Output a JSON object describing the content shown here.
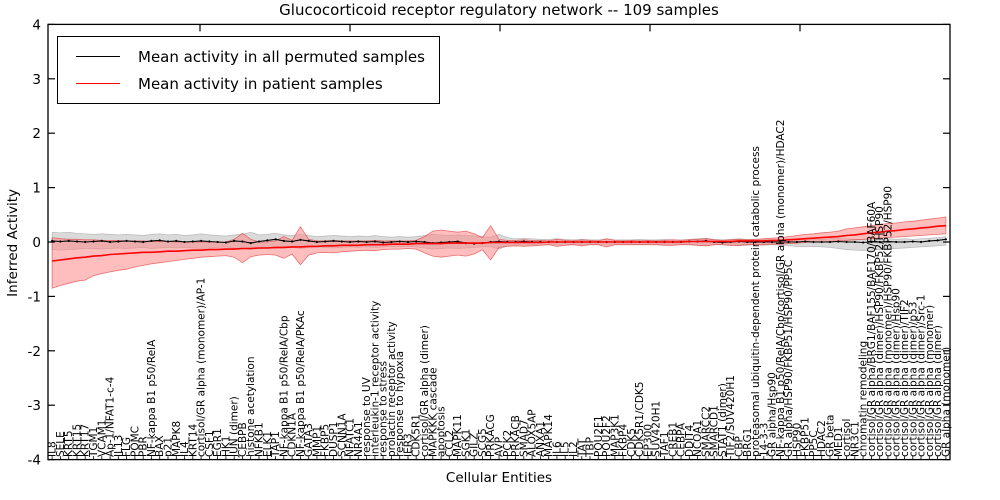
{
  "title": "Glucocorticoid receptor regulatory network -- 109 samples",
  "axes": {
    "ylabel": "Inferred Activity",
    "xlabel": "Cellular Entities",
    "yticks": [
      4,
      3,
      2,
      1,
      0,
      -1,
      -2,
      -3,
      -4
    ],
    "ylim": [
      -4,
      4
    ]
  },
  "legend": {
    "entries": [
      {
        "label": "Mean activity in all permuted samples",
        "color": "#000000"
      },
      {
        "label": "Mean activity in patient samples",
        "color": "#ff0000"
      }
    ]
  },
  "colors": {
    "permuted_line": "#000000",
    "permuted_band": "#bcbcbc",
    "patient_line": "#ff0000",
    "patient_band": "#ff8888",
    "spine": "#000000"
  },
  "chart_data": {
    "type": "line",
    "title": "Glucocorticoid receptor regulatory network -- 109 samples",
    "xlabel": "Cellular Entities",
    "ylabel": "Inferred Activity",
    "ylim": [
      -4,
      4
    ],
    "grid": false,
    "legend_position": "upper left",
    "categories": [
      "IL8",
      "SELE",
      "KRT5",
      "KRT15",
      "KRT17",
      "TGM1",
      "VCAM1",
      "Ap-1/NFAT1-c-4",
      "IL13",
      "FLG",
      "POMC",
      "PBR",
      "NF-kappa B1 p50/RelA",
      "BAX",
      "p21",
      "MAPK8",
      "IL4",
      "KRT14",
      "cortisol/GR alpha (monomer)/AP-1",
      "CSF1",
      "EGR1",
      "HK1",
      "JUN (dimer)",
      "CEBPB",
      "histone acetylation",
      "NFKB1",
      "ELK1",
      "TAP1",
      "NF-kappa B1 p50/RelA/Cbp",
      "CDKN1A",
      "NF-kappa B1 p50/RelA/PKAc",
      "GATA3",
      "MMP1",
      "FKBP5",
      "DUSP1",
      "SCNN1A",
      "NFATC1",
      "NR4A1",
      "response to UV",
      "interleukin-1 receptor activity",
      "response to stress",
      "prolactin receptor activity",
      "response to hypoxia",
      "IER3",
      "CDK5R1",
      "cortisol/GR alpha (dimer)",
      "MAPKKK cascade",
      "apoptosis",
      "CCL2",
      "MAPK11",
      "SGK1",
      "GILZ",
      "SCG5",
      "PRKACG",
      "AVP",
      "PCK2",
      "PRKACB",
      "SMAD7",
      "ALOX5AP",
      "ANXA1",
      "MAPK14",
      "IL6",
      "IL5",
      "IL2",
      "TAT",
      "TBP",
      "POU2F1",
      "POU2F2",
      "MAP3K1",
      "FKBP4",
      "CDK5",
      "CDK5R1/CDK5",
      "EP300",
      "SUV420H1",
      "TAF1",
      "CREB1",
      "CEBPA",
      "DDIT4",
      "NCOA1",
      "SMARCC2",
      "SMARCD1",
      "STAT1 (dimer)",
      "TIF2/SUV420H1",
      "CBP",
      "BRG1",
      "proteasomal ubiquitin-dependent protein catabolic process",
      "14-3-3",
      "GR alpha/Hsp90",
      "NF-kappa B1 p50/RelA/Cbp/cortisol/GR alpha (monomer)/HDAC2",
      "GR alpha/HSP90/FKBP51/HSP90/PP5C",
      "HSP90",
      "FKBP51",
      "PP5C",
      "HDAC2",
      "GR beta",
      "MED1",
      "cortisol",
      "NR3C1",
      "chromatin remodeling",
      "cortisol/GR alpha/BRG1/BAF155/BAF170/BAF60A",
      "cortisol/GR alpha (dimer)/HSP90/FKBP52/HSP90",
      "cortisol/GR alpha (monomer)/HSP90/FKBP52/HSP90",
      "cortisol/GR alpha (dimer)/Hsp90",
      "cortisol/GR alpha (dimer)/TIF2",
      "cortisol/GR alpha (dimer)/p53",
      "cortisol/GR alpha (dimer)/Src-1",
      "cortisol/GR alpha (monomer)",
      "cortisol/GR alpha (dimer)",
      "GR alpha (monomer)"
    ],
    "series": [
      {
        "name": "Mean activity in all permuted samples",
        "color": "#000000",
        "values": [
          0.02,
          0.01,
          0.02,
          0.01,
          0.0,
          0.01,
          0.02,
          0.0,
          0.01,
          0.02,
          0.01,
          0.0,
          0.02,
          0.03,
          0.01,
          0.02,
          0.0,
          0.01,
          0.02,
          0.01,
          0.0,
          -0.01,
          0.02,
          0.01,
          -0.02,
          0.01,
          0.03,
          0.05,
          0.02,
          0.01,
          0.04,
          0.02,
          0.0,
          0.01,
          0.02,
          0.01,
          0.0,
          0.01,
          0.0,
          0.01,
          -0.01,
          0.0,
          0.01,
          0.0,
          0.01,
          0.0,
          -0.02,
          -0.01,
          0.0,
          0.01,
          -0.02,
          -0.03,
          -0.02,
          0.0,
          0.01,
          0.0,
          0.0,
          0.01,
          0.0,
          0.0,
          0.0,
          0.0,
          0.0,
          0.0,
          0.0,
          0.0,
          0.0,
          0.0,
          0.0,
          0.0,
          0.0,
          0.0,
          0.0,
          0.0,
          0.0,
          0.0,
          0.0,
          0.01,
          0.01,
          0.02,
          0.0,
          -0.01,
          0.0,
          0.01,
          0.0,
          0.0,
          0.0,
          0.0,
          0.0,
          0.0,
          0.0,
          0.01,
          0.0,
          0.0,
          0.0,
          0.01,
          0.0,
          0.0,
          -0.01,
          0.0,
          0.0,
          0.01,
          0.0,
          0.0,
          0.01,
          0.0,
          0.02,
          0.03,
          0.05
        ],
        "band_upper": [
          0.18,
          0.17,
          0.18,
          0.16,
          0.15,
          0.14,
          0.15,
          0.14,
          0.13,
          0.14,
          0.13,
          0.12,
          0.14,
          0.15,
          0.13,
          0.14,
          0.12,
          0.13,
          0.15,
          0.13,
          0.12,
          0.11,
          0.13,
          0.14,
          0.18,
          0.13,
          0.14,
          0.16,
          0.13,
          0.12,
          0.14,
          0.12,
          0.1,
          0.11,
          0.12,
          0.11,
          0.1,
          0.11,
          0.1,
          0.12,
          0.1,
          0.09,
          0.1,
          0.09,
          0.1,
          0.12,
          0.14,
          0.13,
          0.12,
          0.13,
          0.12,
          0.11,
          0.1,
          0.09,
          0.14,
          0.08,
          0.06,
          0.07,
          0.06,
          0.05,
          0.05,
          0.06,
          0.05,
          0.04,
          0.05,
          0.04,
          0.04,
          0.05,
          0.04,
          0.04,
          0.04,
          0.05,
          0.04,
          0.04,
          0.05,
          0.04,
          0.04,
          0.05,
          0.06,
          0.07,
          0.05,
          0.04,
          0.05,
          0.06,
          0.05,
          0.04,
          0.05,
          0.04,
          0.05,
          0.06,
          0.05,
          0.06,
          0.05,
          0.05,
          0.06,
          0.07,
          0.06,
          0.05,
          0.05,
          0.06,
          0.05,
          0.06,
          0.05,
          0.06,
          0.05,
          0.06,
          0.07,
          0.08,
          0.1
        ],
        "band_lower": [
          -0.14,
          -0.15,
          -0.14,
          -0.13,
          -0.12,
          -0.12,
          -0.13,
          -0.12,
          -0.11,
          -0.12,
          -0.11,
          -0.1,
          -0.12,
          -0.11,
          -0.1,
          -0.11,
          -0.1,
          -0.11,
          -0.12,
          -0.11,
          -0.1,
          -0.09,
          -0.11,
          -0.12,
          -0.14,
          -0.11,
          -0.1,
          -0.12,
          -0.11,
          -0.1,
          -0.12,
          -0.1,
          -0.09,
          -0.1,
          -0.11,
          -0.1,
          -0.09,
          -0.1,
          -0.09,
          -0.1,
          -0.09,
          -0.08,
          -0.09,
          -0.08,
          -0.09,
          -0.11,
          -0.13,
          -0.12,
          -0.11,
          -0.12,
          -0.11,
          -0.1,
          -0.09,
          -0.08,
          -0.13,
          -0.07,
          -0.05,
          -0.06,
          -0.05,
          -0.04,
          -0.04,
          -0.05,
          -0.04,
          -0.04,
          -0.05,
          -0.04,
          -0.04,
          -0.05,
          -0.04,
          -0.04,
          -0.04,
          -0.05,
          -0.04,
          -0.04,
          -0.05,
          -0.04,
          -0.04,
          -0.05,
          -0.06,
          -0.07,
          -0.05,
          -0.05,
          -0.06,
          -0.07,
          -0.06,
          -0.05,
          -0.06,
          -0.05,
          -0.06,
          -0.07,
          -0.08,
          -0.09,
          -0.08,
          -0.09,
          -0.1,
          -0.12,
          -0.14,
          -0.15,
          -0.16,
          -0.15,
          -0.14,
          -0.13,
          -0.12,
          -0.11,
          -0.1,
          -0.09,
          -0.08,
          -0.07,
          -0.06
        ]
      },
      {
        "name": "Mean activity in patient samples",
        "color": "#ff0000",
        "values": [
          -0.35,
          -0.33,
          -0.31,
          -0.29,
          -0.28,
          -0.26,
          -0.25,
          -0.23,
          -0.22,
          -0.21,
          -0.2,
          -0.19,
          -0.19,
          -0.18,
          -0.17,
          -0.17,
          -0.16,
          -0.15,
          -0.15,
          -0.14,
          -0.14,
          -0.13,
          -0.13,
          -0.12,
          -0.12,
          -0.11,
          -0.11,
          -0.1,
          -0.1,
          -0.09,
          -0.09,
          -0.08,
          -0.08,
          -0.07,
          -0.07,
          -0.06,
          -0.06,
          -0.06,
          -0.05,
          -0.05,
          -0.05,
          -0.04,
          -0.04,
          -0.04,
          -0.03,
          -0.03,
          -0.03,
          -0.03,
          -0.02,
          -0.02,
          -0.02,
          -0.02,
          -0.02,
          -0.01,
          -0.01,
          -0.01,
          -0.01,
          -0.01,
          -0.01,
          -0.01,
          0.0,
          0.0,
          0.0,
          0.0,
          0.0,
          0.0,
          0.0,
          0.0,
          0.0,
          0.0,
          0.0,
          0.0,
          0.0,
          0.0,
          0.0,
          0.0,
          0.0,
          0.01,
          0.01,
          0.01,
          0.01,
          0.01,
          0.01,
          0.02,
          0.02,
          0.02,
          0.02,
          0.03,
          0.03,
          0.04,
          0.05,
          0.06,
          0.07,
          0.08,
          0.09,
          0.1,
          0.12,
          0.13,
          0.15,
          0.17,
          0.18,
          0.2,
          0.21,
          0.23,
          0.24,
          0.26,
          0.27,
          0.29,
          0.3
        ],
        "band_upper": [
          0.08,
          0.06,
          0.05,
          0.05,
          0.04,
          0.04,
          0.03,
          0.03,
          0.03,
          0.02,
          0.02,
          0.02,
          0.01,
          0.01,
          0.01,
          0.0,
          0.0,
          0.0,
          0.0,
          0.0,
          0.0,
          0.0,
          0.05,
          0.16,
          0.05,
          0.0,
          0.0,
          0.02,
          0.1,
          0.03,
          0.28,
          0.05,
          0.02,
          0.02,
          0.03,
          0.02,
          0.02,
          0.02,
          0.02,
          0.03,
          0.02,
          0.02,
          0.02,
          0.02,
          0.03,
          0.1,
          0.2,
          0.22,
          0.2,
          0.18,
          0.2,
          0.15,
          0.08,
          0.3,
          0.05,
          0.03,
          0.03,
          0.04,
          0.03,
          0.03,
          0.02,
          0.05,
          0.03,
          0.02,
          0.04,
          0.03,
          0.02,
          0.06,
          0.03,
          0.02,
          0.03,
          0.02,
          0.03,
          0.02,
          0.03,
          0.04,
          0.03,
          0.04,
          0.05,
          0.06,
          0.04,
          0.03,
          0.04,
          0.05,
          0.04,
          0.05,
          0.06,
          0.07,
          0.08,
          0.1,
          0.12,
          0.14,
          0.15,
          0.17,
          0.18,
          0.2,
          0.24,
          0.26,
          0.28,
          0.3,
          0.32,
          0.34,
          0.35,
          0.37,
          0.38,
          0.4,
          0.42,
          0.44,
          0.46
        ],
        "band_lower": [
          -0.85,
          -0.8,
          -0.76,
          -0.72,
          -0.7,
          -0.62,
          -0.58,
          -0.55,
          -0.52,
          -0.5,
          -0.46,
          -0.43,
          -0.4,
          -0.38,
          -0.36,
          -0.34,
          -0.32,
          -0.3,
          -0.28,
          -0.27,
          -0.26,
          -0.25,
          -0.28,
          -0.38,
          -0.27,
          -0.24,
          -0.23,
          -0.24,
          -0.3,
          -0.22,
          -0.42,
          -0.24,
          -0.2,
          -0.19,
          -0.2,
          -0.18,
          -0.17,
          -0.16,
          -0.15,
          -0.16,
          -0.14,
          -0.13,
          -0.13,
          -0.12,
          -0.13,
          -0.2,
          -0.26,
          -0.28,
          -0.26,
          -0.24,
          -0.26,
          -0.22,
          -0.14,
          -0.33,
          -0.1,
          -0.08,
          -0.07,
          -0.08,
          -0.07,
          -0.06,
          -0.05,
          -0.08,
          -0.06,
          -0.05,
          -0.07,
          -0.05,
          -0.05,
          -0.09,
          -0.05,
          -0.05,
          -0.05,
          -0.05,
          -0.05,
          -0.05,
          -0.06,
          -0.06,
          -0.05,
          -0.05,
          -0.06,
          -0.07,
          -0.05,
          -0.05,
          -0.06,
          -0.06,
          -0.05,
          -0.05,
          -0.05,
          -0.04,
          -0.04,
          -0.03,
          -0.02,
          -0.01,
          0.0,
          0.0,
          0.01,
          0.02,
          0.03,
          0.04,
          0.05,
          0.06,
          0.07,
          0.08,
          0.09,
          0.1,
          0.11,
          0.12,
          0.13,
          0.14,
          0.15
        ]
      }
    ]
  }
}
